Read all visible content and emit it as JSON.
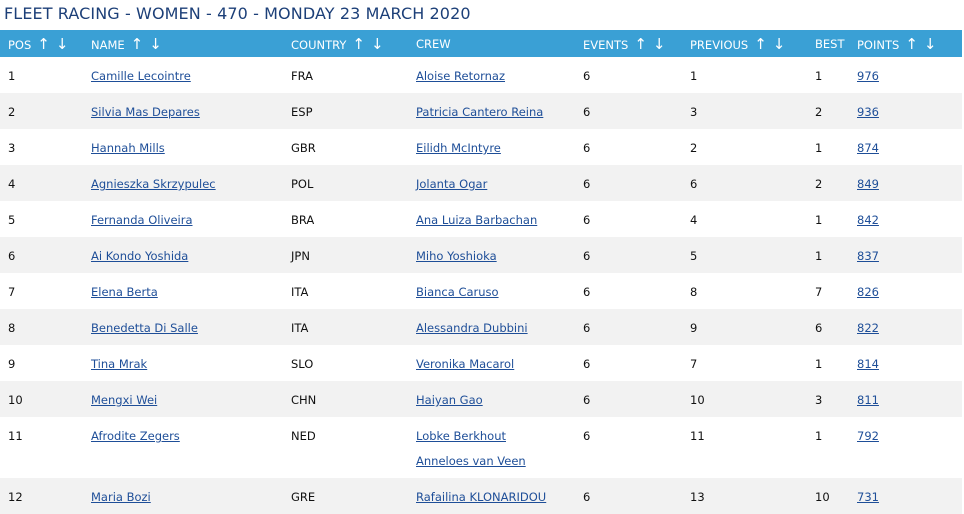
{
  "title": "FLEET RACING - WOMEN - 470 - MONDAY 23 MARCH 2020",
  "columns": {
    "pos": "POS",
    "name": "NAME",
    "country": "COUNTRY",
    "crew": "CREW",
    "events": "EVENTS",
    "previous": "PREVIOUS",
    "best": "BEST",
    "points": "POINTS"
  },
  "sort_icons": {
    "up": "↑",
    "down": "↓"
  },
  "rows": [
    {
      "pos": "1",
      "name": "Camille Lecointre",
      "country": "FRA",
      "crew": [
        "Aloise Retornaz"
      ],
      "events": "6",
      "previous": "1",
      "best": "1",
      "points": "976"
    },
    {
      "pos": "2",
      "name": "Silvia Mas Depares",
      "country": "ESP",
      "crew": [
        "Patricia Cantero Reina"
      ],
      "events": "6",
      "previous": "3",
      "best": "2",
      "points": "936"
    },
    {
      "pos": "3",
      "name": "Hannah Mills",
      "country": "GBR",
      "crew": [
        "Eilidh McIntyre"
      ],
      "events": "6",
      "previous": "2",
      "best": "1",
      "points": "874"
    },
    {
      "pos": "4",
      "name": "Agnieszka Skrzypulec",
      "country": "POL",
      "crew": [
        "Jolanta Ogar"
      ],
      "events": "6",
      "previous": "6",
      "best": "2",
      "points": "849"
    },
    {
      "pos": "5",
      "name": "Fernanda Oliveira",
      "country": "BRA",
      "crew": [
        "Ana Luiza Barbachan"
      ],
      "events": "6",
      "previous": "4",
      "best": "1",
      "points": "842"
    },
    {
      "pos": "6",
      "name": "Ai Kondo Yoshida",
      "country": "JPN",
      "crew": [
        "Miho Yoshioka"
      ],
      "events": "6",
      "previous": "5",
      "best": "1",
      "points": "837"
    },
    {
      "pos": "7",
      "name": "Elena Berta",
      "country": "ITA",
      "crew": [
        "Bianca Caruso"
      ],
      "events": "6",
      "previous": "8",
      "best": "7",
      "points": "826"
    },
    {
      "pos": "8",
      "name": "Benedetta Di Salle",
      "country": "ITA",
      "crew": [
        "Alessandra Dubbini"
      ],
      "events": "6",
      "previous": "9",
      "best": "6",
      "points": "822"
    },
    {
      "pos": "9",
      "name": "Tina Mrak",
      "country": "SLO",
      "crew": [
        "Veronika Macarol"
      ],
      "events": "6",
      "previous": "7",
      "best": "1",
      "points": "814"
    },
    {
      "pos": "10",
      "name": "Mengxi Wei",
      "country": "CHN",
      "crew": [
        "Haiyan Gao"
      ],
      "events": "6",
      "previous": "10",
      "best": "3",
      "points": "811"
    },
    {
      "pos": "11",
      "name": "Afrodite Zegers",
      "country": "NED",
      "crew": [
        "Lobke Berkhout",
        "Anneloes van Veen"
      ],
      "events": "6",
      "previous": "11",
      "best": "1",
      "points": "792"
    },
    {
      "pos": "12",
      "name": "Maria Bozi",
      "country": "GRE",
      "crew": [
        "Rafailina KLONARIDOU"
      ],
      "events": "6",
      "previous": "13",
      "best": "10",
      "points": "731"
    }
  ]
}
